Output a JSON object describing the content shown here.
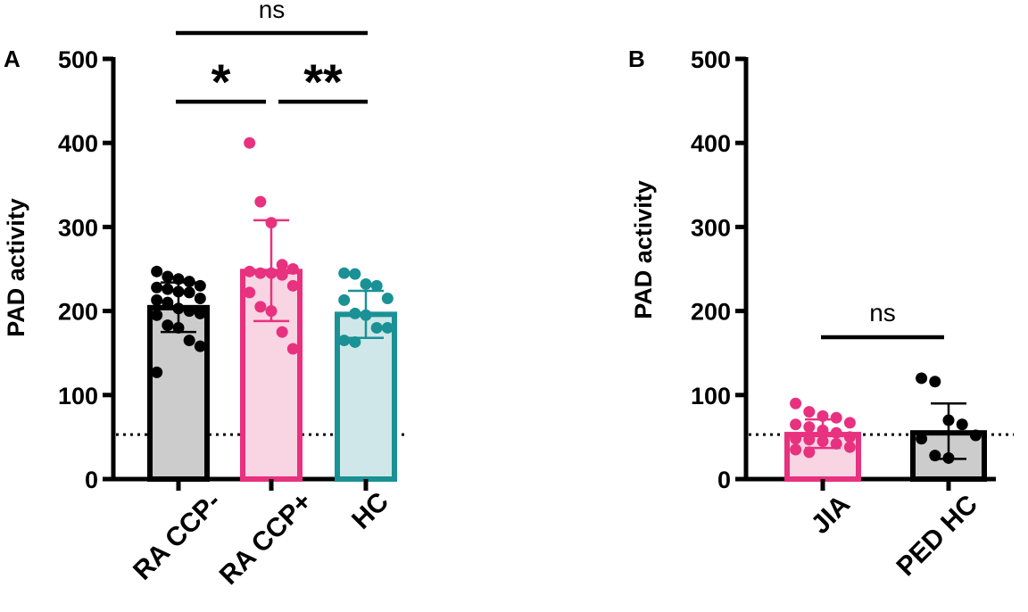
{
  "chart_data": [
    {
      "panel": "A",
      "type": "bar",
      "ylabel": "PAD activity",
      "ylim": [
        0,
        500
      ],
      "yticks": [
        "0",
        "100",
        "200",
        "300",
        "400",
        "500"
      ],
      "reference_line": 53,
      "categories": [
        "RA CCP-",
        "RA CCP+",
        "HC"
      ],
      "series": [
        {
          "name": "RA CCP-",
          "mean": 204,
          "sd_low": 175,
          "sd_high": 234,
          "color": "#000000",
          "fill": "#cccccc",
          "points": [
            247,
            241,
            238,
            235,
            230,
            228,
            226,
            223,
            222,
            215,
            213,
            210,
            203,
            200,
            197,
            195,
            183,
            180,
            165,
            158,
            127
          ]
        },
        {
          "name": "RA CCP+",
          "mean": 247,
          "sd_low": 188,
          "sd_high": 308,
          "color": "#e8317f",
          "fill": "#f9d5e4",
          "points": [
            400,
            330,
            305,
            255,
            250,
            247,
            245,
            245,
            243,
            230,
            222,
            205,
            200,
            175,
            155
          ]
        },
        {
          "name": "HC",
          "mean": 196,
          "sd_low": 168,
          "sd_high": 224,
          "color": "#1a9195",
          "fill": "#cfe7e8",
          "points": [
            245,
            244,
            232,
            230,
            215,
            213,
            197,
            195,
            180,
            180,
            165,
            163
          ]
        }
      ],
      "significance": [
        {
          "from": "RA CCP-",
          "to": "RA CCP+",
          "label": "*"
        },
        {
          "from": "RA CCP+",
          "to": "HC",
          "label": "**"
        },
        {
          "from": "RA CCP-",
          "to": "HC",
          "label": "ns"
        }
      ]
    },
    {
      "panel": "B",
      "type": "bar",
      "ylabel": "PAD activity",
      "ylim": [
        0,
        500
      ],
      "yticks": [
        "0",
        "100",
        "200",
        "300",
        "400",
        "500"
      ],
      "reference_line": 53,
      "categories": [
        "JIA",
        "PED HC"
      ],
      "series": [
        {
          "name": "JIA",
          "mean": 53,
          "sd_low": 37,
          "sd_high": 71,
          "color": "#e8317f",
          "fill": "#f9d5e4",
          "points": [
            90,
            80,
            75,
            73,
            67,
            65,
            62,
            58,
            55,
            50,
            48,
            47,
            45,
            42,
            38,
            35,
            32
          ]
        },
        {
          "name": "PED HC",
          "mean": 55,
          "sd_low": 24,
          "sd_high": 90,
          "color": "#000000",
          "fill": "#cccccc",
          "points": [
            120,
            116,
            70,
            65,
            52,
            48,
            28,
            25
          ]
        }
      ],
      "significance": [
        {
          "from": "JIA",
          "to": "PED HC",
          "label": "ns"
        }
      ]
    }
  ]
}
